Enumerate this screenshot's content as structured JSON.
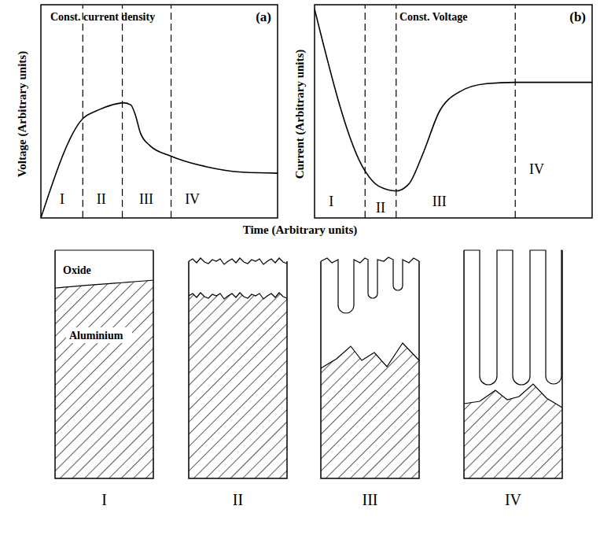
{
  "chart_data": [
    {
      "type": "line",
      "panel": "(a)",
      "title": "Const. current density",
      "y_label": "Voltage (Arbitrary units)",
      "x": [
        0,
        1.77,
        2.4,
        3.0,
        3.5,
        3.8,
        4.0,
        4.2,
        4.6,
        5.5,
        7,
        8.5,
        10
      ],
      "values": [
        0,
        4.66,
        5.05,
        5.3,
        5.4,
        5.3,
        4.8,
        4.0,
        3.4,
        2.9,
        2.4,
        2.15,
        2.1
      ],
      "xlim": [
        0,
        10
      ],
      "ylim": [
        0,
        10
      ],
      "tick_labels": false,
      "color": "#000000",
      "line_style": "solid",
      "dividers": [
        1.77,
        3.44,
        5.5
      ],
      "regions": [
        {
          "label": "I",
          "x": 0.9,
          "y": 0.9
        },
        {
          "label": "II",
          "x": 2.55,
          "y": 0.9
        },
        {
          "label": "III",
          "x": 4.45,
          "y": 0.9
        },
        {
          "label": "IV",
          "x": 6.4,
          "y": 0.9
        }
      ]
    },
    {
      "type": "line",
      "panel": "(b)",
      "title": "Const. Voltage",
      "y_label": "Current (Arbitrary units)",
      "x": [
        0,
        1.82,
        2.3,
        2.94,
        3.4,
        3.9,
        4.5,
        5.2,
        6.2,
        7.23,
        10
      ],
      "values": [
        9.8,
        2.2,
        1.5,
        1.27,
        1.6,
        3.0,
        5.0,
        5.9,
        6.3,
        6.36,
        6.36
      ],
      "xlim": [
        0,
        10
      ],
      "ylim": [
        0,
        10
      ],
      "tick_labels": false,
      "color": "#000000",
      "line_style": "solid",
      "dividers": [
        1.82,
        2.94,
        7.23
      ],
      "regions": [
        {
          "label": "I",
          "x": 0.6,
          "y": 0.8
        },
        {
          "label": "II",
          "x": 2.38,
          "y": 0.5
        },
        {
          "label": "III",
          "x": 4.5,
          "y": 0.8
        },
        {
          "label": "IV",
          "x": 8.0,
          "y": 2.3
        }
      ]
    }
  ],
  "x_label": "Time (Arbitrary units)",
  "schematics": {
    "oxide_label": "Oxide",
    "metal_label": "Aluminium",
    "panels": [
      "I",
      "II",
      "III",
      "IV"
    ]
  }
}
